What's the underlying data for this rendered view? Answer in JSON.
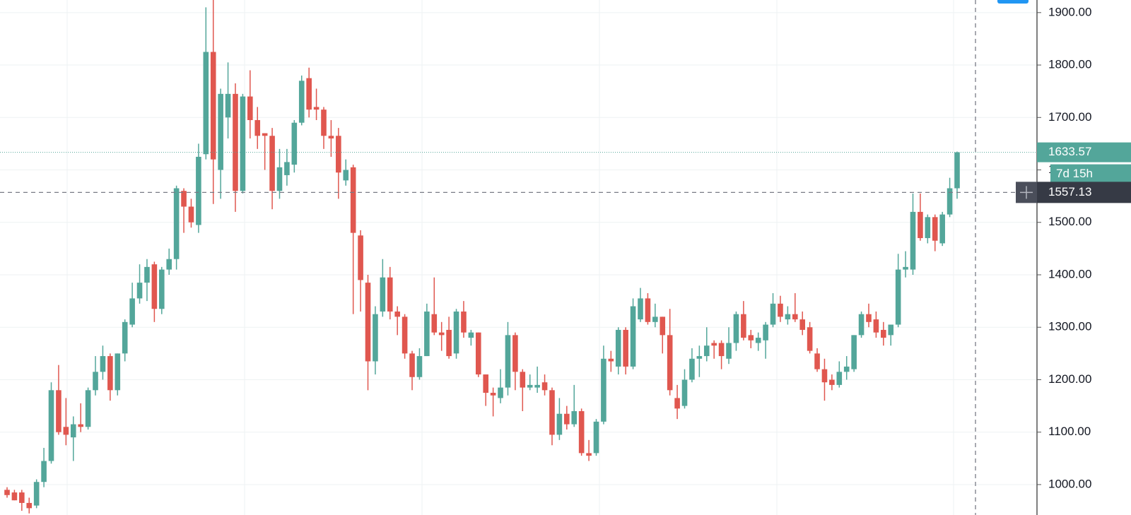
{
  "chart_data": {
    "type": "candlestick",
    "up_color": "#53a69a",
    "down_color": "#e0574f",
    "ylim": [
      942,
      1924
    ],
    "yticks": [
      {
        "value": 1000,
        "label": "1000.00"
      },
      {
        "value": 1100,
        "label": "1100.00"
      },
      {
        "value": 1200,
        "label": "1200.00"
      },
      {
        "value": 1300,
        "label": "1300.00"
      },
      {
        "value": 1400,
        "label": "1400.00"
      },
      {
        "value": 1500,
        "label": "1500.00"
      },
      {
        "value": 1600,
        "label": "1600.00"
      },
      {
        "value": 1700,
        "label": "1700.00"
      },
      {
        "value": 1800,
        "label": "1800.00"
      },
      {
        "value": 1900,
        "label": "1900.00"
      }
    ],
    "grid": true,
    "last_price": 1633.57,
    "countdown": "7d 15h",
    "crosshair": 1557.13,
    "open": [
      990,
      985,
      985,
      965,
      960,
      1005,
      1045,
      1180,
      1110,
      1090,
      1115,
      1110,
      1180,
      1215,
      1245,
      1180,
      1250,
      1305,
      1355,
      1385,
      1420,
      1335,
      1410,
      1430,
      1560,
      1530,
      1495,
      1630,
      1825,
      1600,
      1700,
      1745,
      1560,
      1740,
      1695,
      1670,
      1665,
      1560,
      1590,
      1610,
      1690,
      1775,
      1720,
      1715,
      1665,
      1665,
      1580,
      1605,
      1475,
      1385,
      1235,
      1330,
      1395,
      1330,
      1320,
      1250,
      1205,
      1245,
      1325,
      1290,
      1295,
      1250,
      1330,
      1280,
      1290,
      1210,
      1175,
      1165,
      1185,
      1285,
      1215,
      1185,
      1185,
      1195,
      1180,
      1095,
      1135,
      1115,
      1140,
      1060,
      1060,
      1120,
      1240,
      1225,
      1295,
      1225,
      1315,
      1355,
      1310,
      1320,
      1285,
      1165,
      1150,
      1200,
      1240,
      1245,
      1270,
      1270,
      1240,
      1270,
      1325,
      1285,
      1270,
      1275,
      1305,
      1345,
      1315,
      1325,
      1315,
      1300,
      1250,
      1220,
      1200,
      1190,
      1215,
      1220,
      1285,
      1325,
      1315,
      1295,
      1285,
      1305,
      1410,
      1410,
      1520,
      1470,
      1510,
      1460,
      1515,
      1565
    ],
    "high": [
      995,
      990,
      990,
      975,
      1010,
      1070,
      1195,
      1228,
      1165,
      1130,
      1155,
      1185,
      1245,
      1265,
      1250,
      1250,
      1315,
      1385,
      1420,
      1430,
      1425,
      1415,
      1450,
      1570,
      1565,
      1545,
      1650,
      1910,
      1925,
      1755,
      1805,
      1765,
      1745,
      1790,
      1720,
      1670,
      1680,
      1640,
      1640,
      1695,
      1780,
      1795,
      1755,
      1720,
      1695,
      1680,
      1620,
      1610,
      1485,
      1400,
      1340,
      1430,
      1415,
      1340,
      1325,
      1255,
      1260,
      1345,
      1395,
      1310,
      1320,
      1335,
      1350,
      1295,
      1290,
      1210,
      1185,
      1220,
      1310,
      1290,
      1220,
      1210,
      1225,
      1210,
      1185,
      1165,
      1150,
      1190,
      1145,
      1085,
      1125,
      1265,
      1255,
      1300,
      1300,
      1355,
      1375,
      1365,
      1345,
      1320,
      1335,
      1190,
      1220,
      1260,
      1265,
      1300,
      1275,
      1275,
      1300,
      1330,
      1350,
      1295,
      1290,
      1310,
      1365,
      1360,
      1340,
      1365,
      1330,
      1310,
      1260,
      1240,
      1210,
      1235,
      1245,
      1285,
      1330,
      1345,
      1330,
      1310,
      1305,
      1440,
      1445,
      1555,
      1555,
      1515,
      1515,
      1520,
      1585,
      1635
    ],
    "low": [
      975,
      970,
      950,
      945,
      955,
      995,
      1040,
      1095,
      1075,
      1045,
      1100,
      1105,
      1170,
      1200,
      1160,
      1170,
      1235,
      1300,
      1345,
      1350,
      1310,
      1325,
      1400,
      1410,
      1480,
      1490,
      1480,
      1620,
      1535,
      1545,
      1660,
      1520,
      1555,
      1660,
      1640,
      1600,
      1525,
      1545,
      1570,
      1595,
      1685,
      1700,
      1695,
      1640,
      1625,
      1545,
      1570,
      1325,
      1330,
      1180,
      1210,
      1320,
      1315,
      1285,
      1240,
      1180,
      1200,
      1245,
      1285,
      1255,
      1240,
      1240,
      1280,
      1265,
      1205,
      1150,
      1130,
      1155,
      1170,
      1180,
      1140,
      1180,
      1175,
      1170,
      1075,
      1085,
      1105,
      1110,
      1055,
      1045,
      1055,
      1115,
      1215,
      1210,
      1210,
      1220,
      1310,
      1305,
      1300,
      1250,
      1170,
      1125,
      1145,
      1195,
      1205,
      1235,
      1240,
      1220,
      1230,
      1255,
      1275,
      1260,
      1255,
      1240,
      1300,
      1310,
      1305,
      1310,
      1285,
      1250,
      1215,
      1160,
      1180,
      1185,
      1200,
      1215,
      1280,
      1300,
      1280,
      1265,
      1265,
      1300,
      1395,
      1400,
      1465,
      1460,
      1445,
      1455,
      1510,
      1545
    ],
    "close": [
      980,
      970,
      965,
      955,
      1005,
      1045,
      1180,
      1100,
      1095,
      1115,
      1110,
      1180,
      1215,
      1245,
      1180,
      1250,
      1310,
      1355,
      1385,
      1415,
      1335,
      1410,
      1430,
      1565,
      1530,
      1500,
      1625,
      1825,
      1620,
      1745,
      1745,
      1560,
      1740,
      1695,
      1665,
      1665,
      1560,
      1605,
      1615,
      1690,
      1770,
      1715,
      1715,
      1665,
      1660,
      1595,
      1600,
      1480,
      1390,
      1235,
      1325,
      1395,
      1330,
      1320,
      1250,
      1205,
      1245,
      1330,
      1290,
      1285,
      1245,
      1330,
      1290,
      1290,
      1210,
      1175,
      1170,
      1185,
      1285,
      1215,
      1185,
      1190,
      1190,
      1180,
      1095,
      1135,
      1115,
      1140,
      1060,
      1055,
      1120,
      1240,
      1235,
      1295,
      1225,
      1340,
      1355,
      1310,
      1320,
      1285,
      1180,
      1145,
      1200,
      1240,
      1245,
      1265,
      1265,
      1245,
      1270,
      1325,
      1280,
      1275,
      1280,
      1305,
      1345,
      1320,
      1325,
      1315,
      1295,
      1255,
      1220,
      1195,
      1190,
      1215,
      1225,
      1285,
      1325,
      1310,
      1290,
      1280,
      1305,
      1410,
      1415,
      1520,
      1470,
      1510,
      1465,
      1515,
      1565,
      1633.57
    ]
  }
}
